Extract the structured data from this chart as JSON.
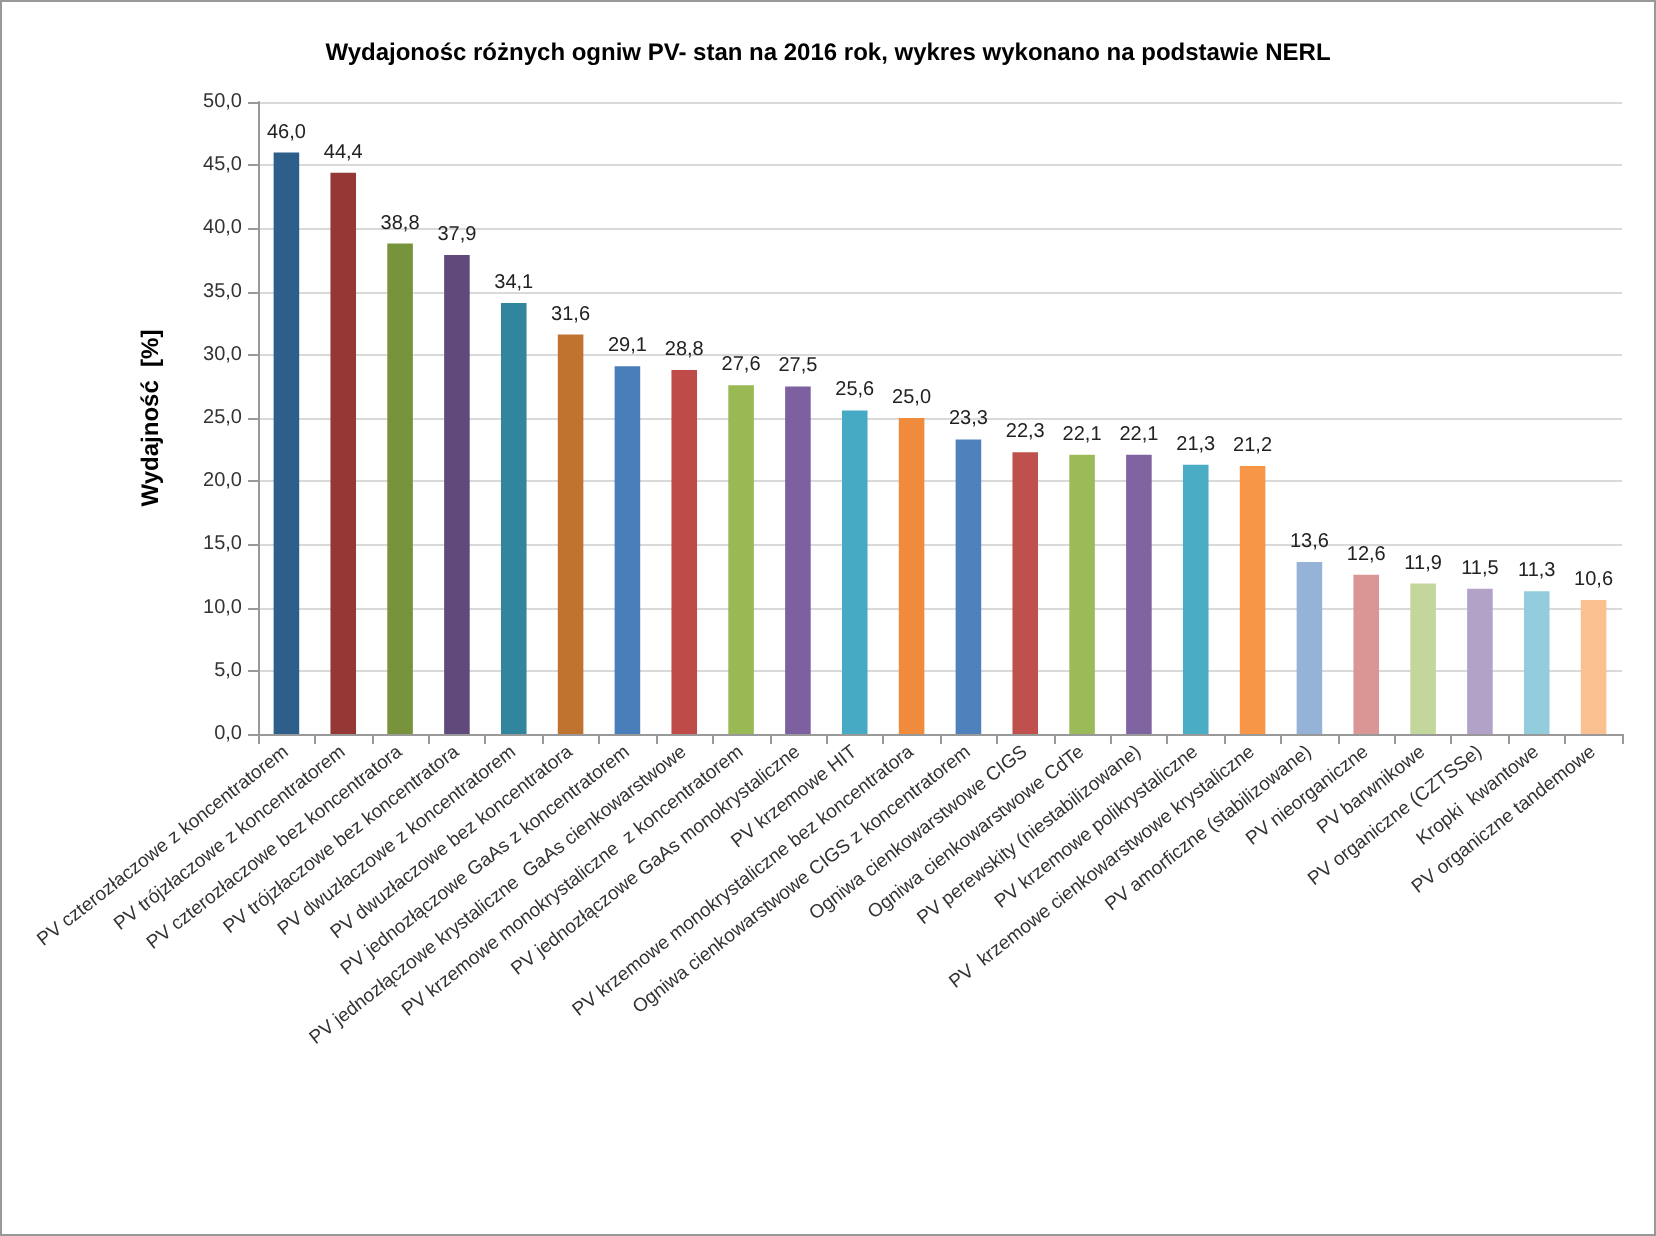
{
  "chart_data": {
    "type": "bar",
    "title": "Wydajonośc różnych ogniw PV- stan na 2016 rok, wykres wykonano na podstawie NERL",
    "ylabel": "Wydajność  [%]",
    "categories": [
      "PV czterozłaczowe z koncentratorem",
      "PV trójzłaczowe z koncentratorem",
      "PV czterozłaczowe bez koncentratora",
      "PV trójzłaczowe bez koncentratora",
      "PV dwuzłaczowe z koncentratorem",
      "PV dwuzłaczowe bez koncentratora",
      "PV jednozłączowe GaAs z koncentratorem",
      "PV jednozłączowe krystaliczne  GaAs cienkowarstwowe",
      "PV krzemowe monokrystaliczne  z koncentratorem",
      "PV jednozłączowe GaAs monokrystaliczne",
      "PV krzemowe HIT",
      "PV krzemowe monokrystaliczne bez koncentratora",
      "Ogniwa cienkowarstwowe CIGS z koncentratorem",
      "Ogniwa cienkowarstwowe CIGS",
      "Ogniwa cienkowarstwowe CdTe",
      "PV perewskity (niestabilizowane)",
      "PV krzemowe polikrystaliczne",
      "PV  krzemowe cienkowarstwowe krystaliczne",
      "PV amorficzne (stabilizowane)",
      "PV nieorganiczne",
      "PV barwnikowe",
      "PV organiczne (CZTSSe)",
      "Kropki  kwantowe",
      "PV organiczne tandemowe"
    ],
    "values": [
      46.0,
      44.4,
      38.8,
      37.9,
      34.1,
      31.6,
      29.1,
      28.8,
      27.6,
      27.5,
      25.6,
      25.0,
      23.3,
      22.3,
      22.1,
      22.1,
      21.3,
      21.2,
      13.6,
      12.6,
      11.9,
      11.5,
      11.3,
      10.6
    ],
    "value_labels": [
      "46,0",
      "44,4",
      "38,8",
      "37,9",
      "34,1",
      "31,6",
      "29,1",
      "28,8",
      "27,6",
      "27,5",
      "25,6",
      "25,0",
      "23,3",
      "22,3",
      "22,1",
      "22,1",
      "21,3",
      "21,2",
      "13,6",
      "12,6",
      "11,9",
      "11,5",
      "11,3",
      "10,6"
    ],
    "colors": [
      "#2e5f8a",
      "#953735",
      "#77933c",
      "#604a7b",
      "#31859c",
      "#c0722f",
      "#4a7ebb",
      "#be4b48",
      "#98b954",
      "#7d60a0",
      "#46aac5",
      "#f08a3c",
      "#4f81bd",
      "#c0504d",
      "#9bbb59",
      "#8064a2",
      "#4bacc6",
      "#f79646",
      "#95b3d7",
      "#d99694",
      "#c3d69b",
      "#b3a2c7",
      "#93cddd",
      "#fac090"
    ],
    "ylim": [
      0,
      50
    ],
    "yticks": [
      {
        "value": 0,
        "label": "0,0"
      },
      {
        "value": 5,
        "label": "5,0"
      },
      {
        "value": 10,
        "label": "10,0"
      },
      {
        "value": 15,
        "label": "15,0"
      },
      {
        "value": 20,
        "label": "20,0"
      },
      {
        "value": 25,
        "label": "25,0"
      },
      {
        "value": 30,
        "label": "30,0"
      },
      {
        "value": 35,
        "label": "35,0"
      },
      {
        "value": 40,
        "label": "40,0"
      },
      {
        "value": 45,
        "label": "45,0"
      },
      {
        "value": 50,
        "label": "50,0"
      }
    ],
    "grid": "y"
  }
}
